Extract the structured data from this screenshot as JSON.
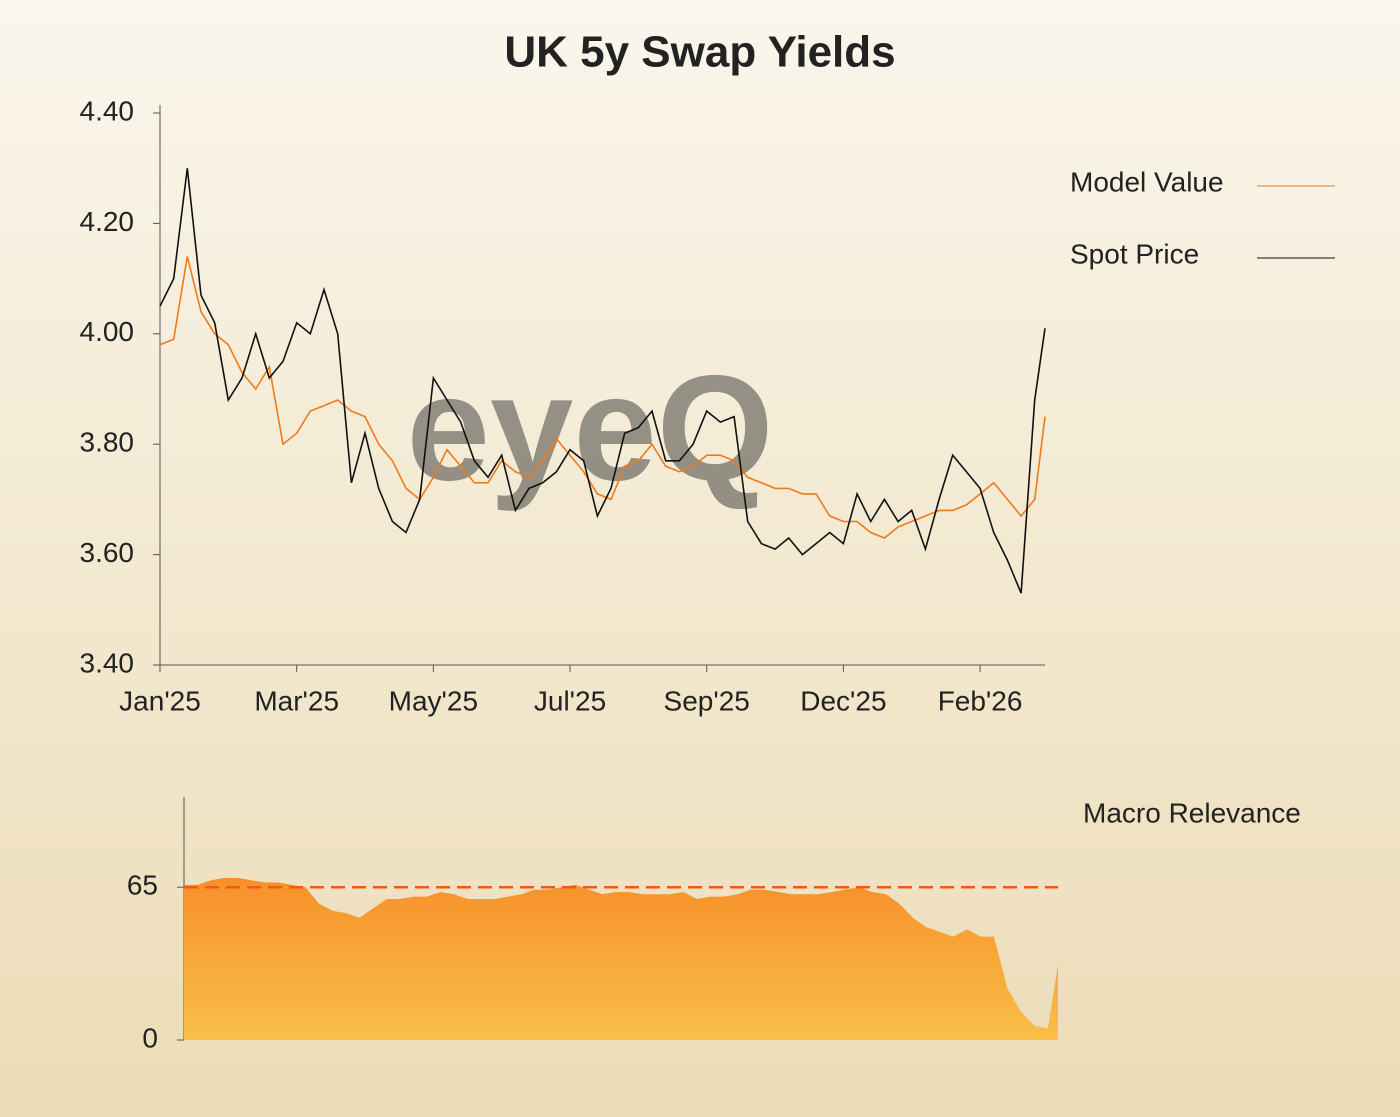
{
  "chart_data": [
    {
      "type": "line",
      "title": "UK 5y Swap Yields",
      "watermark": "eyeQ",
      "x": [
        0,
        4,
        8,
        12,
        16,
        20,
        24,
        28,
        32,
        36,
        40,
        44,
        48,
        52,
        56,
        60,
        64,
        68,
        72,
        76,
        80,
        84,
        88,
        92,
        96,
        100,
        104,
        108,
        112,
        116,
        120,
        124,
        128,
        132,
        136,
        140,
        144,
        148,
        152,
        156,
        160,
        164,
        168,
        172,
        176,
        180,
        184,
        188,
        192,
        196,
        200,
        204,
        208,
        212,
        216,
        220,
        224,
        228,
        232,
        236,
        240,
        244,
        248,
        252,
        256,
        259
      ],
      "xlim": [
        0,
        259
      ],
      "xticks": [
        {
          "value": 0,
          "label": "Jan'25"
        },
        {
          "value": 40,
          "label": "Mar'25"
        },
        {
          "value": 80,
          "label": "May'25"
        },
        {
          "value": 120,
          "label": "Jul'25"
        },
        {
          "value": 160,
          "label": "Sep'25"
        },
        {
          "value": 200,
          "label": "Dec'25"
        },
        {
          "value": 240,
          "label": "Feb'26"
        }
      ],
      "ylim": [
        3.4,
        4.4
      ],
      "yticks": [
        {
          "value": 3.4,
          "label": "3.40"
        },
        {
          "value": 3.6,
          "label": "3.60"
        },
        {
          "value": 3.8,
          "label": "3.80"
        },
        {
          "value": 4.0,
          "label": "4.00"
        },
        {
          "value": 4.2,
          "label": "4.20"
        },
        {
          "value": 4.4,
          "label": "4.40"
        }
      ],
      "series": [
        {
          "name": "Model Value",
          "color": "#f07a1a",
          "values": [
            3.98,
            3.99,
            4.14,
            4.04,
            4.0,
            3.98,
            3.93,
            3.9,
            3.94,
            3.8,
            3.82,
            3.86,
            3.87,
            3.88,
            3.86,
            3.85,
            3.8,
            3.77,
            3.72,
            3.7,
            3.74,
            3.79,
            3.76,
            3.73,
            3.73,
            3.77,
            3.75,
            3.74,
            3.77,
            3.81,
            3.78,
            3.75,
            3.71,
            3.7,
            3.76,
            3.77,
            3.8,
            3.76,
            3.75,
            3.76,
            3.78,
            3.78,
            3.77,
            3.74,
            3.73,
            3.72,
            3.72,
            3.71,
            3.71,
            3.67,
            3.66,
            3.66,
            3.64,
            3.63,
            3.65,
            3.66,
            3.67,
            3.68,
            3.68,
            3.69,
            3.71,
            3.73,
            3.7,
            3.67,
            3.7,
            3.85
          ]
        },
        {
          "name": "Spot Price",
          "color": "#111111",
          "values": [
            4.05,
            4.1,
            4.3,
            4.07,
            4.02,
            3.88,
            3.92,
            4.0,
            3.92,
            3.95,
            4.02,
            4.0,
            4.08,
            4.0,
            3.73,
            3.82,
            3.72,
            3.66,
            3.64,
            3.7,
            3.92,
            3.88,
            3.84,
            3.77,
            3.74,
            3.78,
            3.68,
            3.72,
            3.73,
            3.75,
            3.79,
            3.77,
            3.67,
            3.72,
            3.82,
            3.83,
            3.86,
            3.77,
            3.77,
            3.8,
            3.86,
            3.84,
            3.85,
            3.66,
            3.62,
            3.61,
            3.63,
            3.6,
            3.62,
            3.64,
            3.62,
            3.71,
            3.66,
            3.7,
            3.66,
            3.68,
            3.61,
            3.7,
            3.78,
            3.75,
            3.72,
            3.64,
            3.59,
            3.53,
            3.88,
            4.01
          ]
        }
      ]
    },
    {
      "type": "area",
      "x": [
        0,
        4,
        8,
        12,
        16,
        20,
        24,
        28,
        32,
        36,
        40,
        44,
        48,
        52,
        56,
        60,
        64,
        68,
        72,
        76,
        80,
        84,
        88,
        92,
        96,
        100,
        104,
        108,
        112,
        116,
        120,
        124,
        128,
        132,
        136,
        140,
        144,
        148,
        152,
        156,
        160,
        164,
        168,
        172,
        176,
        180,
        184,
        188,
        192,
        196,
        200,
        204,
        208,
        212,
        216,
        220,
        224,
        228,
        232,
        236,
        240,
        244,
        248,
        252,
        256,
        259
      ],
      "xlim": [
        0,
        259
      ],
      "ylim": [
        0,
        100
      ],
      "yticks": [
        0,
        65
      ],
      "reference_line": 65,
      "series": [
        {
          "name": "Macro Relevance",
          "color": "#f7a23a",
          "values": [
            66,
            66,
            68,
            69,
            69,
            68,
            67,
            67,
            66,
            65,
            58,
            55,
            54,
            52,
            56,
            60,
            60,
            61,
            61,
            63,
            62,
            60,
            60,
            60,
            61,
            62,
            64,
            64,
            65,
            66,
            64,
            62,
            63,
            63,
            62,
            62,
            62,
            63,
            60,
            61,
            61,
            62,
            64,
            64,
            63,
            62,
            62,
            62,
            63,
            64,
            65,
            63,
            62,
            58,
            52,
            48,
            46,
            44,
            47,
            44,
            44,
            22,
            12,
            6,
            5,
            32
          ]
        }
      ]
    }
  ]
}
